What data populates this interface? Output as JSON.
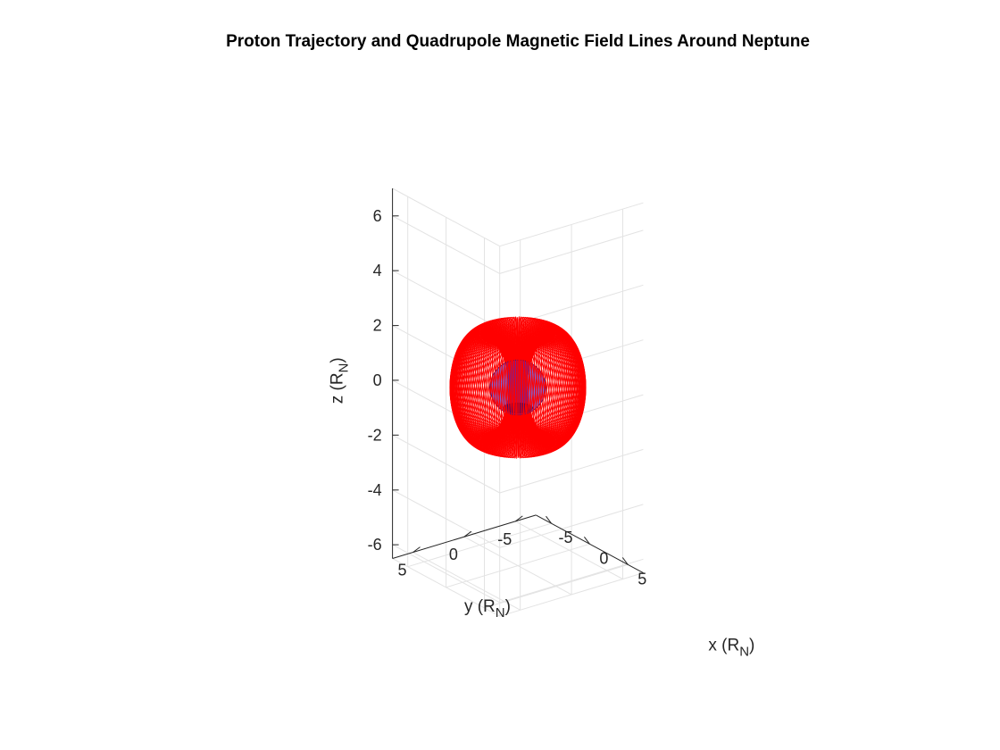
{
  "chart_data": {
    "type": "3d-line",
    "title": "Proton Trajectory and Quadrupole Magnetic Field Lines Around Neptune",
    "xlabel": {
      "main": "x (R",
      "sub": "N",
      "close": ")"
    },
    "ylabel": {
      "main": "y (R",
      "sub": "N",
      "close": ")"
    },
    "zlabel": {
      "main": "z (R",
      "sub": "N",
      "close": ")"
    },
    "xlim": [
      -7,
      7
    ],
    "ylim": [
      -7,
      7
    ],
    "zlim": [
      -6.5,
      7
    ],
    "x_ticks": [
      -5,
      0,
      5
    ],
    "x_tick_labels": [
      "-5",
      "0",
      "5"
    ],
    "y_ticks": [
      -5,
      0,
      5
    ],
    "y_tick_labels": [
      "-5",
      "0",
      "5"
    ],
    "z_ticks": [
      -6,
      -4,
      -2,
      0,
      2,
      4,
      6
    ],
    "z_tick_labels": [
      "-6",
      "-4",
      "-2",
      "0",
      "2",
      "4",
      "6"
    ],
    "grid": true,
    "view": {
      "azimuth_deg": -37.5,
      "elevation_deg": 30
    },
    "series": [
      {
        "kind": "field-line-torus",
        "color": "#ff0000",
        "major_radius": 3.0,
        "minor_radius": 2.3,
        "vertical_scale": 0.85,
        "count": 170
      },
      {
        "kind": "planet-sphere",
        "color": "#3b2fd9",
        "center": [
          0,
          0,
          0
        ],
        "radius": 1.0
      }
    ]
  }
}
